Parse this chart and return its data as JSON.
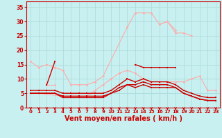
{
  "bg_color": "#c8f0f0",
  "grid_color": "#a8d8d8",
  "xlabel": "Vent moyen/en rafales ( km/h )",
  "xlabel_color": "#cc0000",
  "xlabel_fontsize": 7,
  "tick_color": "#cc0000",
  "xlim": [
    -0.5,
    23.5
  ],
  "ylim": [
    0,
    37
  ],
  "yticks": [
    0,
    5,
    10,
    15,
    20,
    25,
    30,
    35
  ],
  "xticks": [
    0,
    1,
    2,
    3,
    4,
    5,
    6,
    7,
    8,
    9,
    10,
    11,
    12,
    13,
    14,
    15,
    16,
    17,
    18,
    19,
    20,
    21,
    22,
    23
  ],
  "lines": [
    {
      "x": [
        0,
        1,
        2,
        3,
        4,
        5,
        6,
        7,
        8,
        9,
        12,
        13,
        14,
        15,
        16,
        17,
        18
      ],
      "y": [
        16,
        14,
        15,
        14,
        13,
        8,
        8,
        8,
        9,
        11,
        28,
        33,
        33,
        33,
        29,
        30,
        27
      ],
      "color": "#ffaaaa",
      "lw": 0.8,
      "marker": "D",
      "ms": 1.8,
      "zorder": 2
    },
    {
      "x": [
        16,
        17,
        18,
        19,
        20
      ],
      "y": [
        29,
        30,
        26,
        26,
        25
      ],
      "color": "#ffaaaa",
      "lw": 0.8,
      "marker": "D",
      "ms": 1.8,
      "zorder": 2
    },
    {
      "x": [
        0,
        1,
        4,
        5,
        6,
        7,
        8,
        9,
        10,
        11,
        12,
        13,
        14,
        15,
        16,
        17,
        18,
        19,
        20,
        21,
        22,
        23
      ],
      "y": [
        5,
        5,
        4,
        4,
        4,
        4,
        6,
        8,
        10,
        12,
        13,
        12,
        10,
        9,
        9,
        9,
        9,
        9,
        10,
        11,
        6,
        6
      ],
      "color": "#ffaaaa",
      "lw": 0.8,
      "marker": "D",
      "ms": 1.8,
      "zorder": 2
    },
    {
      "x": [
        2,
        3
      ],
      "y": [
        8,
        8
      ],
      "color": "#ffaaaa",
      "lw": 0.8,
      "marker": "D",
      "ms": 1.8,
      "zorder": 2
    },
    {
      "x": [
        0,
        1,
        2,
        3,
        4,
        5,
        6,
        7,
        8,
        9,
        10,
        11,
        12,
        13,
        14,
        15,
        16,
        17,
        18,
        19,
        20,
        21,
        22,
        23
      ],
      "y": [
        5,
        5,
        5,
        5,
        4,
        4,
        4,
        4,
        4,
        4,
        5,
        7,
        8,
        8,
        9,
        8,
        8,
        8,
        7,
        5,
        4,
        3,
        2.5,
        2.5
      ],
      "color": "#cc0000",
      "lw": 1.0,
      "marker": "s",
      "ms": 1.5,
      "zorder": 3
    },
    {
      "x": [
        0,
        1,
        2,
        3,
        4,
        5,
        6,
        7,
        8,
        9,
        10,
        11,
        12,
        13,
        14,
        15,
        16,
        17,
        18,
        19,
        20,
        21,
        22,
        23
      ],
      "y": [
        6,
        6,
        6,
        6,
        5,
        5,
        5,
        5,
        5,
        5,
        6,
        8,
        10,
        9,
        10,
        9,
        9,
        9,
        8,
        6,
        5,
        4,
        3.5,
        3.5
      ],
      "color": "#cc0000",
      "lw": 1.0,
      "marker": "s",
      "ms": 1.5,
      "zorder": 3
    },
    {
      "x": [
        13,
        14,
        15,
        16,
        17,
        18
      ],
      "y": [
        15,
        14,
        14,
        14,
        14,
        14
      ],
      "color": "#cc0000",
      "lw": 1.0,
      "marker": "s",
      "ms": 1.5,
      "zorder": 3
    },
    {
      "x": [
        0,
        1,
        2,
        3,
        4,
        5,
        6,
        7,
        8,
        9,
        10,
        11,
        12,
        13,
        14,
        15,
        16,
        17,
        18,
        19,
        20,
        21,
        22,
        23
      ],
      "y": [
        5,
        5,
        5,
        5,
        3.5,
        3.5,
        3.5,
        3.5,
        3.5,
        3.5,
        5,
        6,
        8,
        7,
        8,
        7,
        7,
        7,
        7,
        5,
        4,
        3,
        2.5,
        2.5
      ],
      "color": "#cc0000",
      "lw": 1.0,
      "marker": "s",
      "ms": 1.5,
      "zorder": 3
    },
    {
      "x": [
        2,
        3
      ],
      "y": [
        8,
        16
      ],
      "color": "#cc0000",
      "lw": 1.0,
      "marker": "s",
      "ms": 1.5,
      "zorder": 3
    }
  ],
  "arrow_color": "#cc0000"
}
